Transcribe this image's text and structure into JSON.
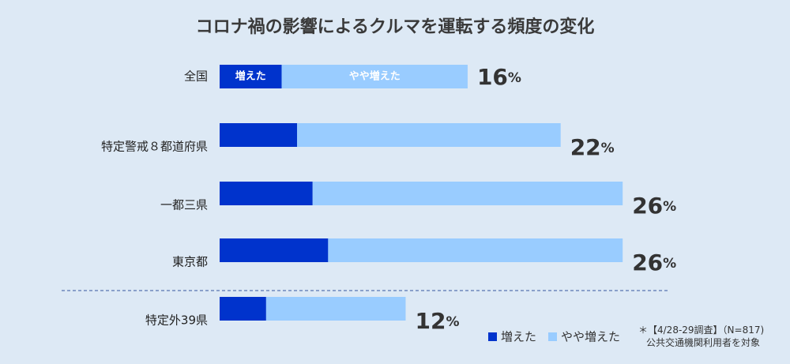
{
  "chart_data": {
    "type": "bar",
    "orientation": "horizontal",
    "stacked": true,
    "title": "コロナ禍の影響によるクルマを運転する頻度の変化",
    "categories": [
      "全国",
      "特定警戒８都道府県",
      "一都三県",
      "東京都",
      "特定外39県"
    ],
    "series": [
      {
        "name": "増えた",
        "values": [
          4,
          5,
          6,
          7,
          3
        ]
      },
      {
        "name": "やや増えた",
        "values": [
          12,
          17,
          20,
          19,
          9
        ]
      }
    ],
    "totals": [
      "16",
      "22",
      "26",
      "26",
      "12"
    ],
    "unit": "%",
    "colors": [
      "#0033cc",
      "#99ccff"
    ],
    "inbar_labels": [
      "増えた",
      "やや増えた"
    ],
    "xlim": [
      0,
      26.5
    ],
    "separator_before_index": 4,
    "legend": {
      "position": "bottom-right",
      "labels": [
        "増えた",
        "やや増えた"
      ]
    }
  },
  "footnote": {
    "line1": "＊【4/28-29調査】（N=817)",
    "line2": "公共交通機関利用者を対象"
  }
}
